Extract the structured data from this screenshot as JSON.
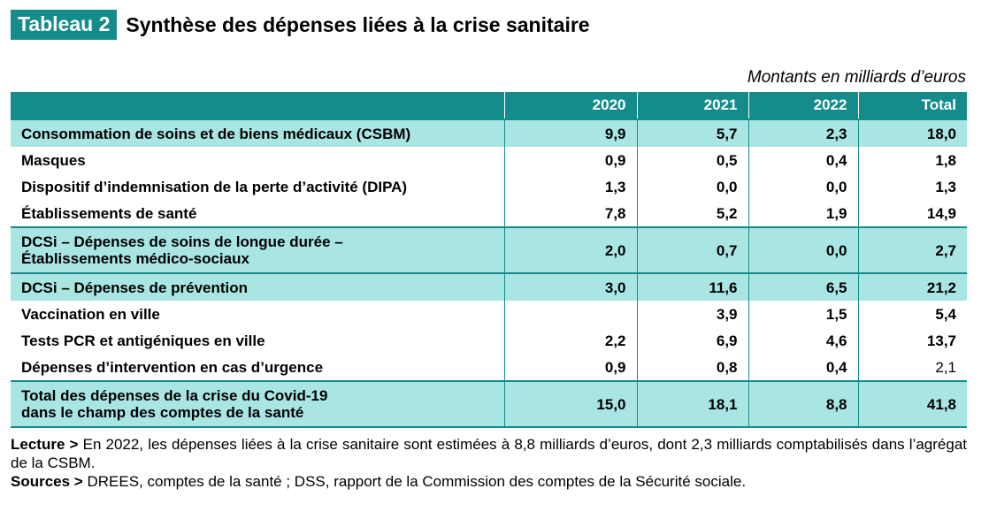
{
  "header": {
    "tag": "Tableau 2",
    "title": "Synthèse des dépenses liées à la crise sanitaire",
    "units": "Montants en milliards d’euros"
  },
  "table": {
    "columns": [
      "",
      "2020",
      "2021",
      "2022",
      "Total"
    ],
    "rows": [
      {
        "label": "Consommation de soins et de biens médicaux (CSBM)",
        "values": [
          "9,9",
          "5,7",
          "2,3",
          "18,0"
        ],
        "highlight": true
      },
      {
        "label": "Masques",
        "values": [
          "0,9",
          "0,5",
          "0,4",
          "1,8"
        ]
      },
      {
        "label": "Dispositif d’indemnisation de la perte d’activité (DIPA)",
        "values": [
          "1,3",
          "0,0",
          "0,0",
          "1,3"
        ]
      },
      {
        "label": "Établissements de santé",
        "values": [
          "7,8",
          "5,2",
          "1,9",
          "14,9"
        ]
      },
      {
        "label": "DCSi – Dépenses de soins de longue durée –",
        "label2": "Établissements médico-sociaux",
        "values": [
          "2,0",
          "0,7",
          "0,0",
          "2,7"
        ],
        "highlight": true
      },
      {
        "label": "DCSi – Dépenses de prévention",
        "values": [
          "3,0",
          "11,6",
          "6,5",
          "21,2"
        ],
        "highlight": true
      },
      {
        "label": "Vaccination en ville",
        "values": [
          "",
          "3,9",
          "1,5",
          "5,4"
        ]
      },
      {
        "label": "Tests PCR et antigéniques en ville",
        "values": [
          "2,2",
          "6,9",
          "4,6",
          "13,7"
        ]
      },
      {
        "label": "Dépenses d’intervention en cas d’urgence",
        "values": [
          "0,9",
          "0,8",
          "0,4",
          "2,1"
        ]
      },
      {
        "label": "Total des dépenses de la crise du Covid-19",
        "label2": "dans le champ des comptes de la santé",
        "values": [
          "15,0",
          "18,1",
          "8,8",
          "41,8"
        ],
        "highlight": true
      }
    ]
  },
  "notes": {
    "lecture_label": "Lecture >",
    "lecture_text": " En 2022, les dépenses liées à la crise sanitaire sont estimées à 8,8 milliards d’euros, dont 2,3 milliards comptabilisés dans l’agrégat de la CSBM.",
    "sources_label": "Sources >",
    "sources_text": " DREES, comptes de la santé ; DSS, rapport de la Commission des comptes de la Sécurité sociale."
  }
}
